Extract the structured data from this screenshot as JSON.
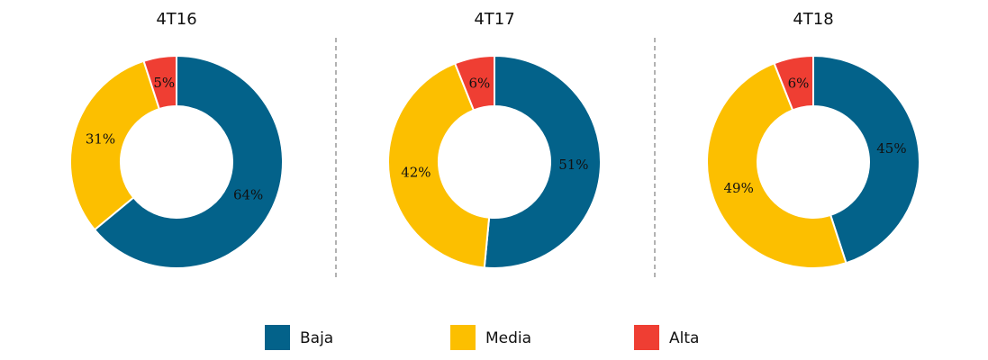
{
  "chart_data": [
    {
      "type": "pie",
      "title": "4T16",
      "categories": [
        "Baja",
        "Media",
        "Alta"
      ],
      "values": [
        64,
        31,
        5
      ],
      "value_labels": [
        "64%",
        "31%",
        "5%"
      ],
      "colors": [
        "#03628a",
        "#fcbf00",
        "#ef3e33"
      ]
    },
    {
      "type": "pie",
      "title": "4T17",
      "categories": [
        "Baja",
        "Media",
        "Alta"
      ],
      "values": [
        51,
        42,
        6
      ],
      "value_labels": [
        "51%",
        "42%",
        "6%"
      ],
      "colors": [
        "#03628a",
        "#fcbf00",
        "#ef3e33"
      ]
    },
    {
      "type": "pie",
      "title": "4T18",
      "categories": [
        "Baja",
        "Media",
        "Alta"
      ],
      "values": [
        45,
        49,
        6
      ],
      "value_labels": [
        "45%",
        "49%",
        "6%"
      ],
      "colors": [
        "#03628a",
        "#fcbf00",
        "#ef3e33"
      ]
    }
  ]
}
